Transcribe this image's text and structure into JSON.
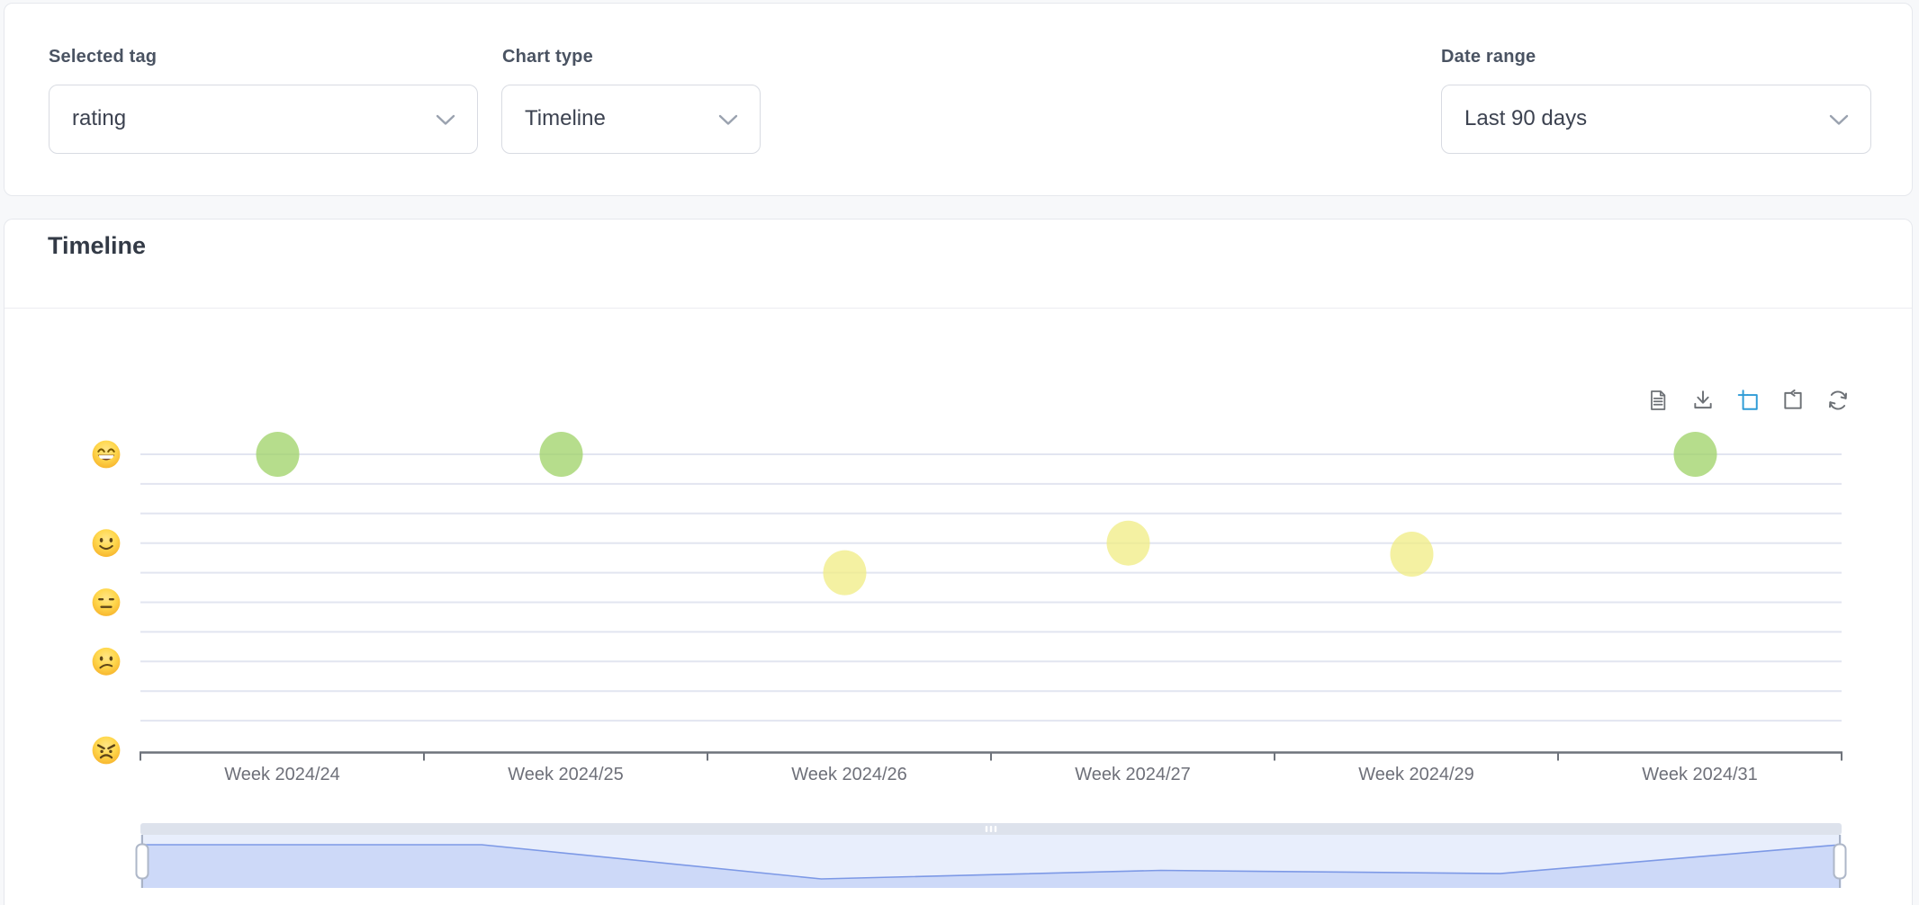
{
  "filters": {
    "selected_tag": {
      "label": "Selected tag",
      "value": "rating"
    },
    "chart_type": {
      "label": "Chart type",
      "value": "Timeline"
    },
    "date_range": {
      "label": "Date range",
      "value": "Last 90 days"
    }
  },
  "chart_panel": {
    "title": "Timeline"
  },
  "toolbar": {
    "tools": [
      "data-view",
      "save-as-image",
      "zoom-select",
      "zoom-reset",
      "restore"
    ],
    "active_tool": "zoom-select",
    "active_color": "#2e9bd6",
    "idle_color": "#6d7176"
  },
  "chart_data": {
    "type": "scatter",
    "title": "Timeline",
    "categories": [
      "Week 2024/24",
      "Week 2024/25",
      "Week 2024/26",
      "Week 2024/27",
      "Week 2024/29",
      "Week 2024/31"
    ],
    "series": [
      {
        "name": "rating",
        "values": [
          5,
          5,
          3.4,
          3.8,
          3.65,
          5
        ]
      }
    ],
    "point_colors": [
      "#9ed266",
      "#9ed266",
      "#f0ec83",
      "#f0ec83",
      "#f0ec83",
      "#9ed266"
    ],
    "point_opacity": 0.75,
    "y_axis": {
      "kind": "emoji-rating",
      "min": 1,
      "max": 5,
      "ticks": [
        {
          "emoji": "grinning-face",
          "value": 5
        },
        {
          "emoji": "slightly-smiling-face",
          "value": 3.8
        },
        {
          "emoji": "expressionless-face",
          "value": 3
        },
        {
          "emoji": "confused-face",
          "value": 2.2
        },
        {
          "emoji": "angry-face",
          "value": 1
        }
      ]
    },
    "grid": {
      "lines": 10,
      "color": "#e2e5f0"
    },
    "axis_color": "#6e737b",
    "label_color": "#6e7079",
    "datazoom": {
      "shadow_values": [
        5,
        5,
        3.4,
        3.8,
        3.65,
        5
      ],
      "range_percent": [
        0,
        100
      ],
      "fill": "#cdd9f8",
      "line": "#7d99e6",
      "background": "#e8eefc",
      "move_handle": "#dde2ec",
      "handle_border": "#aeb7c8"
    }
  }
}
